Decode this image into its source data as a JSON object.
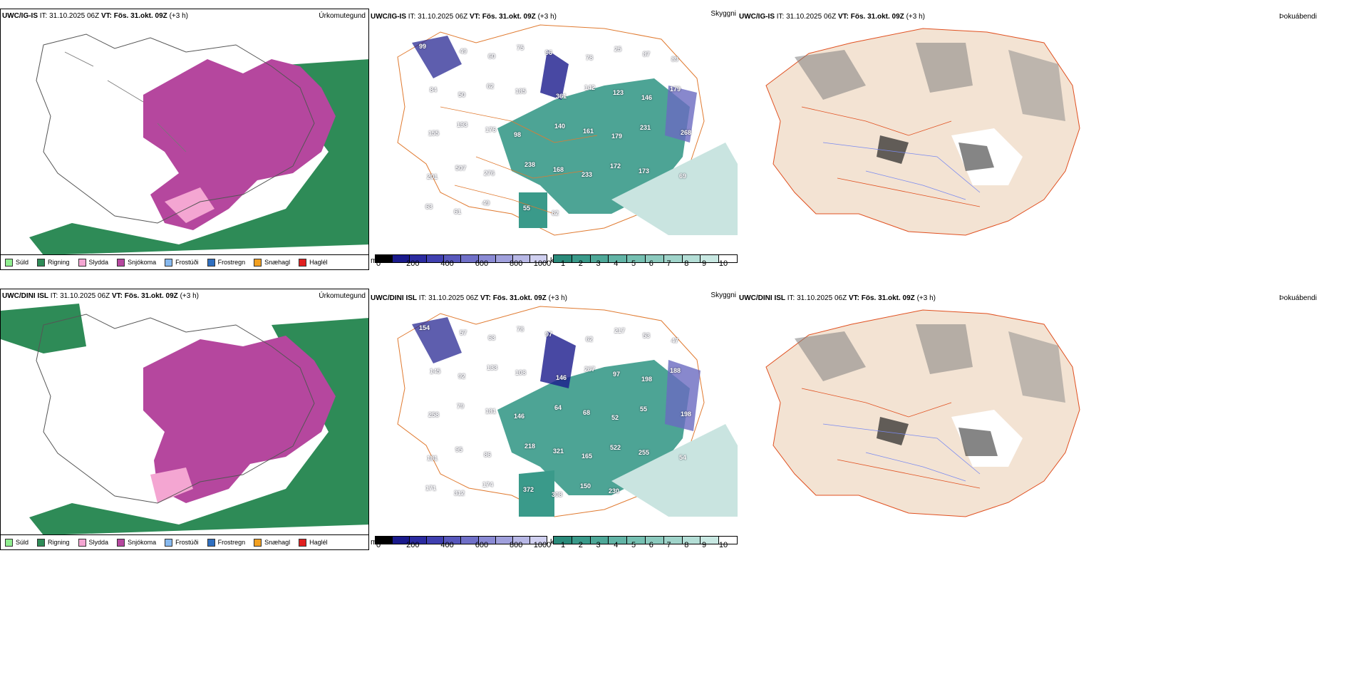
{
  "rows": [
    {
      "model": "UWC/IG-IS",
      "it_label": "IT:",
      "it_value": "31.10.2025 06Z",
      "vt_label": "VT:",
      "vt_value": "Fös. 31.okt. 09Z",
      "lead": "(+3 h)",
      "ptype_title": "Úrkomutegund",
      "cloud_title": "Skyggni",
      "fog_title": "Þokuábendi"
    },
    {
      "model": "UWC/DINI ISL",
      "it_label": "IT:",
      "it_value": "31.10.2025 06Z",
      "vt_label": "VT:",
      "vt_value": "Fös. 31.okt. 09Z",
      "lead": "(+3 h)",
      "ptype_title": "Úrkomutegund",
      "cloud_title": "Skyggni",
      "fog_title": "Þokuábendi"
    }
  ],
  "precip_legend": [
    {
      "label": "Súld",
      "color": "#90ee90"
    },
    {
      "label": "Rigning",
      "color": "#2e8b57"
    },
    {
      "label": "Slydda",
      "color": "#f4a6d2"
    },
    {
      "label": "Snjókoma",
      "color": "#b5479e"
    },
    {
      "label": "Frostúði",
      "color": "#87b9ef"
    },
    {
      "label": "Frostregn",
      "color": "#2f6fc0"
    },
    {
      "label": "Snæhagl",
      "color": "#f2a020"
    },
    {
      "label": "Haglél",
      "color": "#e02020"
    }
  ],
  "ceiling_scale": {
    "unit": "m",
    "ticks": [
      "0",
      "200",
      "400",
      "600",
      "800",
      "1000"
    ]
  },
  "visibility_scale": {
    "unit": "km",
    "ticks": [
      "1",
      "2",
      "3",
      "4",
      "5",
      "6",
      "7",
      "8",
      "9",
      "10"
    ]
  },
  "fog_scale": {
    "min": "0",
    "max": "60"
  },
  "ceiling_labels": [
    [
      "99",
      "49",
      "60",
      "75",
      "96",
      "78",
      "25",
      "87",
      "89",
      "84",
      "50",
      "62",
      "185",
      "361",
      "142",
      "123",
      "146",
      "179",
      "155",
      "193",
      "176",
      "98",
      "140",
      "161",
      "179",
      "231",
      "268",
      "201",
      "507",
      "276",
      "238",
      "168",
      "233",
      "172",
      "173",
      "69",
      "63",
      "61",
      "49",
      "55",
      "62"
    ],
    [
      "154",
      "57",
      "63",
      "78",
      "97",
      "62",
      "217",
      "53",
      "47",
      "145",
      "92",
      "133",
      "108",
      "146",
      "267",
      "97",
      "198",
      "188",
      "258",
      "79",
      "181",
      "146",
      "64",
      "68",
      "52",
      "55",
      "198",
      "181",
      "95",
      "86",
      "218",
      "321",
      "165",
      "522",
      "255",
      "54",
      "171",
      "312",
      "174",
      "372",
      "308",
      "150",
      "230"
    ]
  ],
  "colors": {
    "rain": "#2e8b57",
    "snow": "#b5479e",
    "sleet": "#f4a6d2",
    "cloud_low": "#3a9a8a",
    "cloud_high": "#c9e4e0",
    "ceiling_low": "#1a1a8c",
    "ceiling_high": "#c8c8f0",
    "land": "#f3e3d3",
    "roads": "#e07a30"
  }
}
